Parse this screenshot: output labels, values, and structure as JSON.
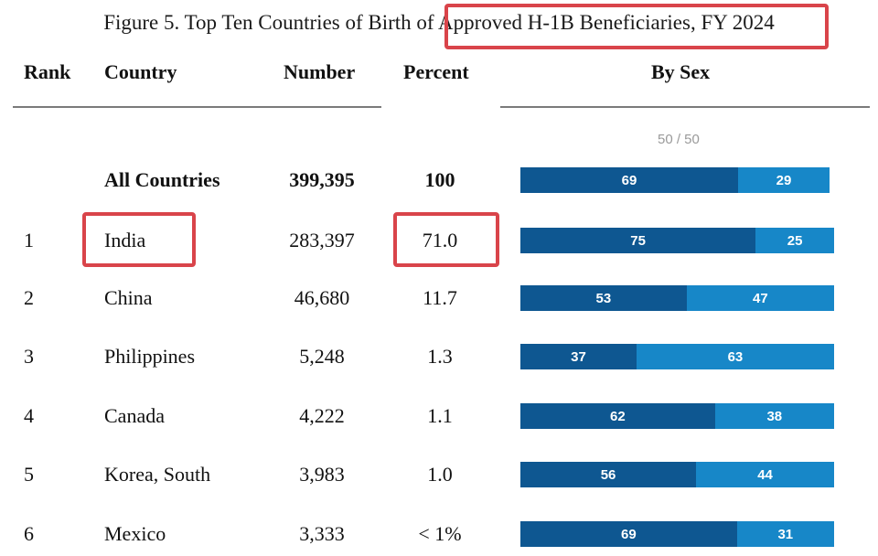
{
  "title": "Figure 5. Top Ten Countries of Birth of Approved H-1B Beneficiaries, FY 2024",
  "headers": {
    "rank": "Rank",
    "country": "Country",
    "number": "Number",
    "percent": "Percent",
    "by_sex": "By Sex"
  },
  "scale_note": "50 / 50",
  "colors": {
    "male": "#0e5791",
    "female": "#1787c8",
    "highlight": "#d9444a"
  },
  "rows": [
    {
      "rank": "",
      "country": "All Countries",
      "number": "399,395",
      "percent": "100",
      "sex_1": 69,
      "sex_2": 29,
      "total": true
    },
    {
      "rank": "1",
      "country": "India",
      "number": "283,397",
      "percent": "71.0",
      "sex_1": 75,
      "sex_2": 25
    },
    {
      "rank": "2",
      "country": "China",
      "number": "46,680",
      "percent": "11.7",
      "sex_1": 53,
      "sex_2": 47
    },
    {
      "rank": "3",
      "country": "Philippines",
      "number": "5,248",
      "percent": "1.3",
      "sex_1": 37,
      "sex_2": 63
    },
    {
      "rank": "4",
      "country": "Canada",
      "number": "4,222",
      "percent": "1.1",
      "sex_1": 62,
      "sex_2": 38
    },
    {
      "rank": "5",
      "country": "Korea, South",
      "number": "3,983",
      "percent": "1.0",
      "sex_1": 56,
      "sex_2": 44
    },
    {
      "rank": "6",
      "country": "Mexico",
      "number": "3,333",
      "percent": "< 1%",
      "sex_1": 69,
      "sex_2": 31
    }
  ]
}
